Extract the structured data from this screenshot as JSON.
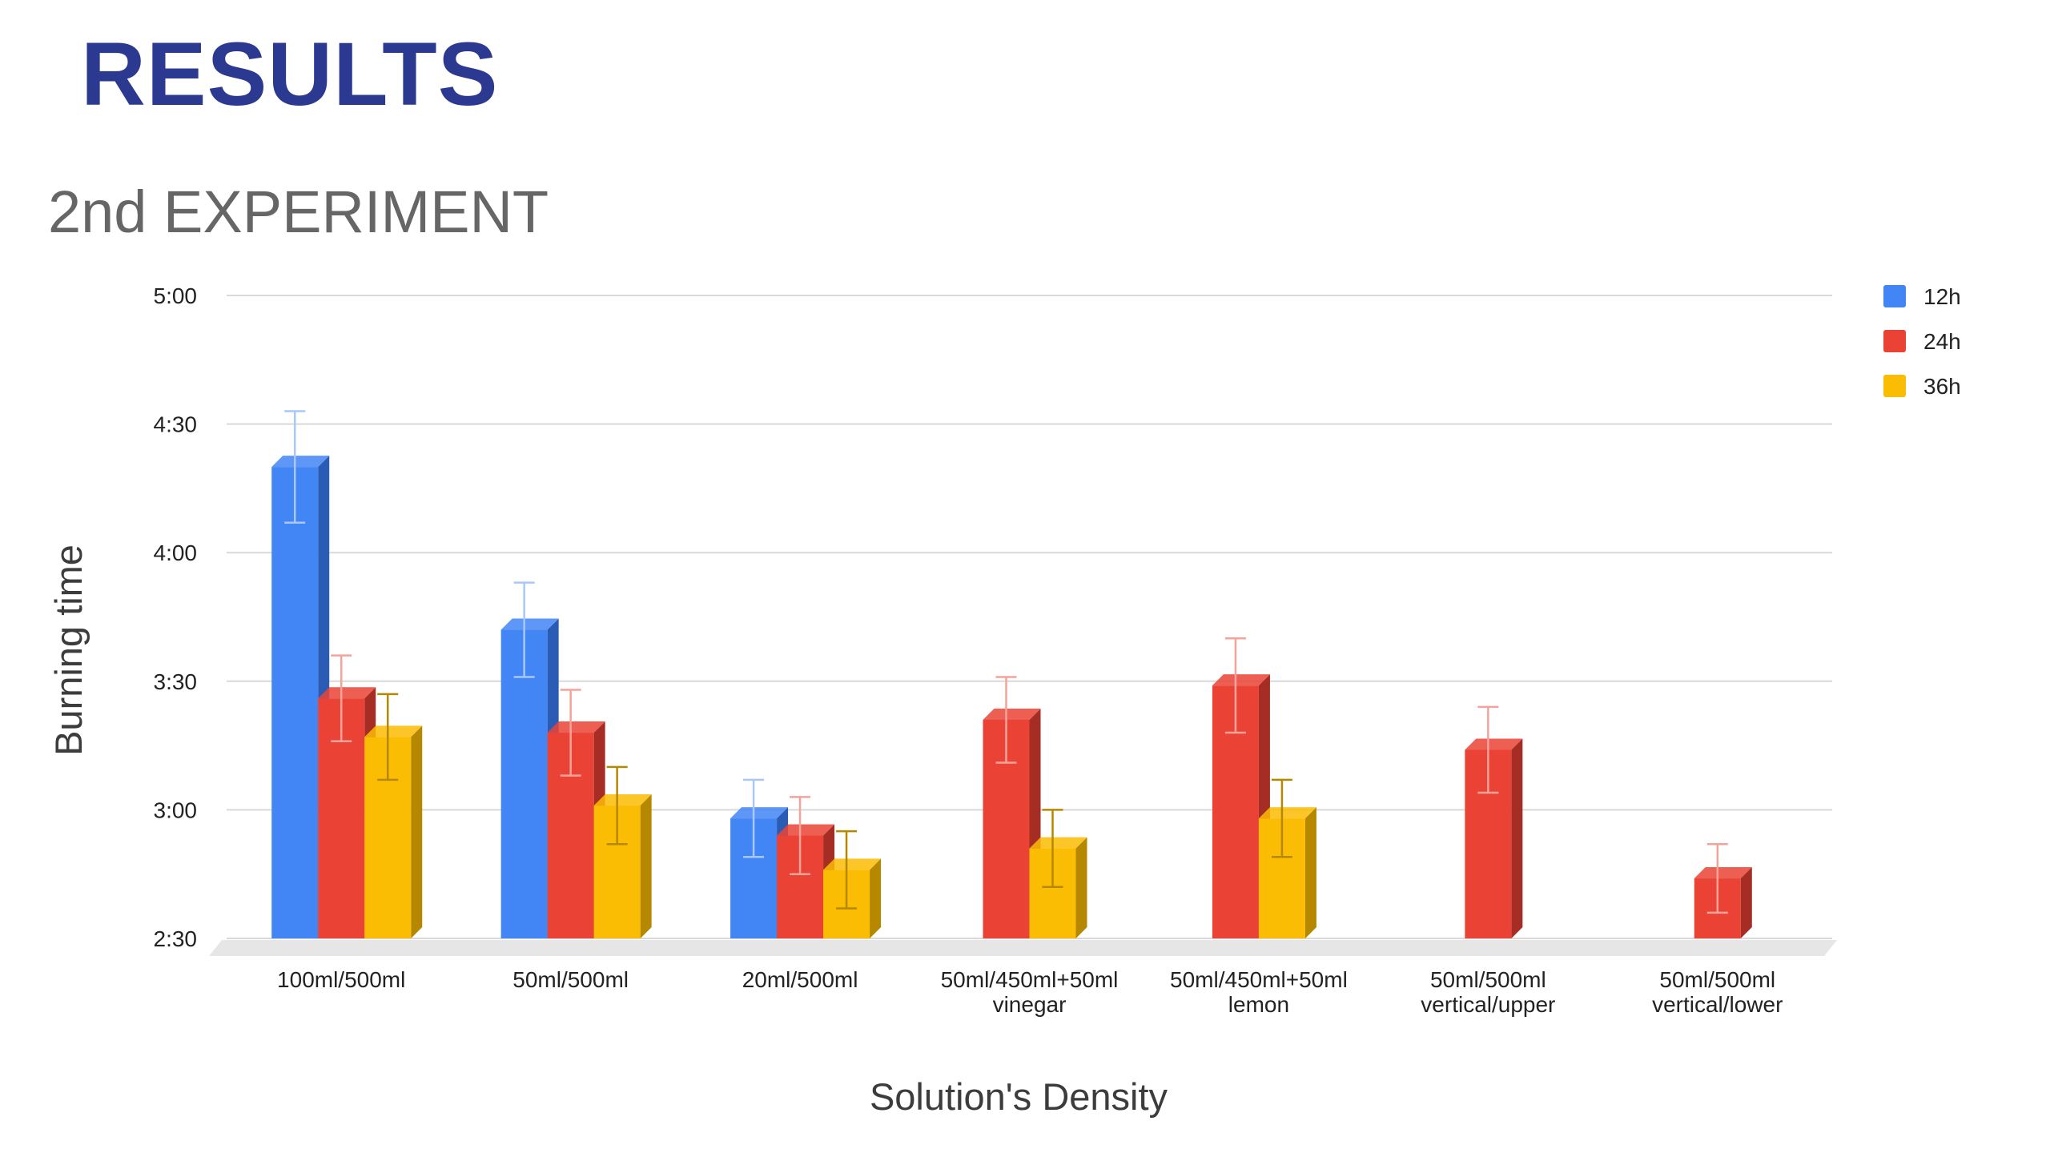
{
  "slide": {
    "heading": "RESULTS",
    "subheading": "2nd EXPERIMENT"
  },
  "chart_data": {
    "type": "bar",
    "style": "3d",
    "title": "",
    "xlabel": "Solution's Density",
    "ylabel": "Burning time",
    "y_unit": "minutes (m:ss)",
    "ylim": [
      150,
      300
    ],
    "y_ticks": [
      {
        "value": 150,
        "label": "2:30"
      },
      {
        "value": 180,
        "label": "3:00"
      },
      {
        "value": 210,
        "label": "3:30"
      },
      {
        "value": 240,
        "label": "4:00"
      },
      {
        "value": 270,
        "label": "4:30"
      },
      {
        "value": 300,
        "label": "5:00"
      }
    ],
    "grid": true,
    "legend_position": "right",
    "categories": [
      [
        "100ml/500ml"
      ],
      [
        "50ml/500ml"
      ],
      [
        "20ml/500ml"
      ],
      [
        "50ml/450ml+50ml",
        "vinegar"
      ],
      [
        "50ml/450ml+50ml",
        "lemon"
      ],
      [
        "50ml/500ml",
        "vertical/upper"
      ],
      [
        "50ml/500ml",
        "vertical/lower"
      ]
    ],
    "series": [
      {
        "name": "12h",
        "color": "#4285f4",
        "side_color": "#2a5bb5",
        "values": [
          260,
          222,
          178,
          null,
          null,
          null,
          null
        ],
        "errors": [
          13,
          11,
          9,
          null,
          null,
          null,
          null
        ]
      },
      {
        "name": "24h",
        "color": "#ea4335",
        "side_color": "#a52d24",
        "values": [
          206,
          198,
          174,
          201,
          209,
          194,
          164
        ],
        "errors": [
          10,
          10,
          9,
          10,
          11,
          10,
          8
        ]
      },
      {
        "name": "36h",
        "color": "#fbbc04",
        "side_color": "#b58800",
        "values": [
          197,
          181,
          166,
          171,
          178,
          null,
          null
        ],
        "errors": [
          10,
          9,
          9,
          9,
          9,
          null,
          null
        ]
      }
    ]
  }
}
